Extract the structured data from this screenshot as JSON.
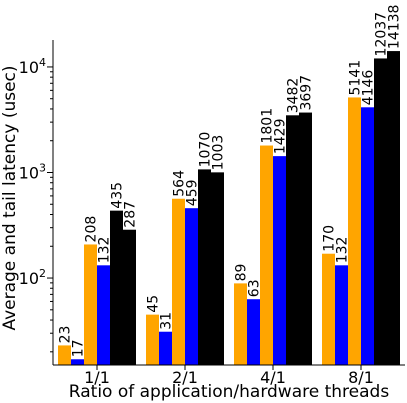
{
  "chart_data": {
    "type": "bar",
    "title": "",
    "xlabel": "Ratio of application/hardware threads",
    "ylabel": "Average and tail latency (usec)",
    "yscale": "log",
    "ylim": [
      15,
      18000
    ],
    "yticks": [
      {
        "value": 100,
        "base": "10",
        "exp": "2"
      },
      {
        "value": 1000,
        "base": "10",
        "exp": "3"
      },
      {
        "value": 10000,
        "base": "10",
        "exp": "4"
      }
    ],
    "categories": [
      "1/1",
      "2/1",
      "4/1",
      "8/1"
    ],
    "grid": false,
    "legend": "none",
    "colors": {
      "orange": "#FFA500",
      "blue": "#0000FF"
    },
    "bar_colors": [
      "orange",
      "blue",
      "orange",
      "blue"
    ],
    "values": [
      [
        23,
        17,
        208,
        132,
        435,
        287
      ],
      [
        45,
        31,
        564,
        459,
        1070,
        1003
      ],
      [
        89,
        63,
        1801,
        1429,
        3482,
        3697
      ],
      [
        170,
        132,
        5141,
        4146,
        12037,
        14138
      ]
    ],
    "labels": [
      [
        "23",
        "17",
        "208",
        "132",
        "435",
        "287"
      ],
      [
        "45",
        "31",
        "564",
        "459",
        "1070",
        "1003"
      ],
      [
        "89",
        "63",
        "1801",
        "1429",
        "3482",
        "3697"
      ],
      [
        "170",
        "132",
        "5141",
        "4146",
        "12037",
        "14138"
      ]
    ]
  }
}
